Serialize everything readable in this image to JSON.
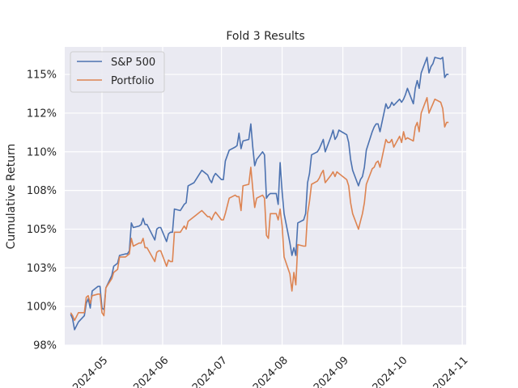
{
  "chart_data": {
    "type": "line",
    "title": "Fold 3 Results",
    "xlabel": "",
    "ylabel": "Cumulative Return",
    "x_ticks": [
      "2024-05",
      "2024-06",
      "2024-07",
      "2024-08",
      "2024-09",
      "2024-10",
      "2024-11"
    ],
    "y_ticks": [
      "98%",
      "100%",
      "103%",
      "105%",
      "108%",
      "110%",
      "112%",
      "115%"
    ],
    "y_tick_values": [
      0.975,
      1.0,
      1.025,
      1.05,
      1.075,
      1.1,
      1.125,
      1.15
    ],
    "ylim": [
      0.975,
      1.1678
    ],
    "xlim": [
      "2024-04-12",
      "2024-11-03"
    ],
    "grid": true,
    "legend_position": "top-left",
    "series": [
      {
        "name": "S&P 500",
        "color": "#4c72b0",
        "points": [
          [
            "2024-04-15",
            0.995
          ],
          [
            "2024-04-16",
            0.992
          ],
          [
            "2024-04-17",
            0.985
          ],
          [
            "2024-04-19",
            0.99
          ],
          [
            "2024-04-22",
            0.994
          ],
          [
            "2024-04-23",
            1.002
          ],
          [
            "2024-04-24",
            1.005
          ],
          [
            "2024-04-25",
            0.999
          ],
          [
            "2024-04-26",
            1.01
          ],
          [
            "2024-04-29",
            1.013
          ],
          [
            "2024-04-30",
            1.013
          ],
          [
            "2024-05-01",
            0.999
          ],
          [
            "2024-05-02",
            0.998
          ],
          [
            "2024-05-03",
            1.012
          ],
          [
            "2024-05-06",
            1.02
          ],
          [
            "2024-05-07",
            1.026
          ],
          [
            "2024-05-08",
            1.027
          ],
          [
            "2024-05-09",
            1.028
          ],
          [
            "2024-05-10",
            1.033
          ],
          [
            "2024-05-13",
            1.034
          ],
          [
            "2024-05-14",
            1.034
          ],
          [
            "2024-05-15",
            1.036
          ],
          [
            "2024-05-16",
            1.054
          ],
          [
            "2024-05-17",
            1.051
          ],
          [
            "2024-05-20",
            1.052
          ],
          [
            "2024-05-21",
            1.053
          ],
          [
            "2024-05-22",
            1.057
          ],
          [
            "2024-05-23",
            1.053
          ],
          [
            "2024-05-24",
            1.053
          ],
          [
            "2024-05-28",
            1.043
          ],
          [
            "2024-05-29",
            1.05
          ],
          [
            "2024-05-30",
            1.051
          ],
          [
            "2024-05-31",
            1.051
          ],
          [
            "2024-06-03",
            1.042
          ],
          [
            "2024-06-04",
            1.047
          ],
          [
            "2024-06-05",
            1.048
          ],
          [
            "2024-06-06",
            1.048
          ],
          [
            "2024-06-07",
            1.063
          ],
          [
            "2024-06-10",
            1.062
          ],
          [
            "2024-06-11",
            1.064
          ],
          [
            "2024-06-12",
            1.066
          ],
          [
            "2024-06-13",
            1.067
          ],
          [
            "2024-06-14",
            1.078
          ],
          [
            "2024-06-17",
            1.08
          ],
          [
            "2024-06-18",
            1.082
          ],
          [
            "2024-06-20",
            1.086
          ],
          [
            "2024-06-21",
            1.088
          ],
          [
            "2024-06-24",
            1.085
          ],
          [
            "2024-06-25",
            1.082
          ],
          [
            "2024-06-26",
            1.08
          ],
          [
            "2024-06-27",
            1.084
          ],
          [
            "2024-06-28",
            1.086
          ],
          [
            "2024-07-01",
            1.082
          ],
          [
            "2024-07-02",
            1.082
          ],
          [
            "2024-07-03",
            1.094
          ],
          [
            "2024-07-05",
            1.101
          ],
          [
            "2024-07-08",
            1.103
          ],
          [
            "2024-07-09",
            1.104
          ],
          [
            "2024-07-10",
            1.112
          ],
          [
            "2024-07-11",
            1.102
          ],
          [
            "2024-07-12",
            1.107
          ],
          [
            "2024-07-15",
            1.108
          ],
          [
            "2024-07-16",
            1.118
          ],
          [
            "2024-07-17",
            1.103
          ],
          [
            "2024-07-18",
            1.091
          ],
          [
            "2024-07-19",
            1.095
          ],
          [
            "2024-07-22",
            1.1
          ],
          [
            "2024-07-23",
            1.098
          ],
          [
            "2024-07-24",
            1.07
          ],
          [
            "2024-07-25",
            1.072
          ],
          [
            "2024-07-26",
            1.073
          ],
          [
            "2024-07-29",
            1.073
          ],
          [
            "2024-07-30",
            1.066
          ],
          [
            "2024-07-31",
            1.093
          ],
          [
            "2024-08-01",
            1.074
          ],
          [
            "2024-08-02",
            1.06
          ],
          [
            "2024-08-05",
            1.041
          ],
          [
            "2024-08-06",
            1.033
          ],
          [
            "2024-08-07",
            1.038
          ],
          [
            "2024-08-08",
            1.033
          ],
          [
            "2024-08-09",
            1.054
          ],
          [
            "2024-08-12",
            1.056
          ],
          [
            "2024-08-13",
            1.06
          ],
          [
            "2024-08-14",
            1.08
          ],
          [
            "2024-08-15",
            1.086
          ],
          [
            "2024-08-16",
            1.098
          ],
          [
            "2024-08-19",
            1.1
          ],
          [
            "2024-08-20",
            1.102
          ],
          [
            "2024-08-21",
            1.105
          ],
          [
            "2024-08-22",
            1.108
          ],
          [
            "2024-08-23",
            1.1
          ],
          [
            "2024-08-26",
            1.11
          ],
          [
            "2024-08-27",
            1.114
          ],
          [
            "2024-08-28",
            1.108
          ],
          [
            "2024-08-29",
            1.11
          ],
          [
            "2024-08-30",
            1.114
          ],
          [
            "2024-09-03",
            1.111
          ],
          [
            "2024-09-04",
            1.106
          ],
          [
            "2024-09-05",
            1.095
          ],
          [
            "2024-09-06",
            1.088
          ],
          [
            "2024-09-09",
            1.078
          ],
          [
            "2024-09-10",
            1.082
          ],
          [
            "2024-09-11",
            1.084
          ],
          [
            "2024-09-12",
            1.09
          ],
          [
            "2024-09-13",
            1.101
          ],
          [
            "2024-09-16",
            1.113
          ],
          [
            "2024-09-17",
            1.116
          ],
          [
            "2024-09-18",
            1.118
          ],
          [
            "2024-09-19",
            1.118
          ],
          [
            "2024-09-20",
            1.113
          ],
          [
            "2024-09-23",
            1.131
          ],
          [
            "2024-09-24",
            1.128
          ],
          [
            "2024-09-25",
            1.129
          ],
          [
            "2024-09-26",
            1.132
          ],
          [
            "2024-09-27",
            1.13
          ],
          [
            "2024-09-30",
            1.134
          ],
          [
            "2024-10-01",
            1.132
          ],
          [
            "2024-10-02",
            1.134
          ],
          [
            "2024-10-03",
            1.137
          ],
          [
            "2024-10-04",
            1.141
          ],
          [
            "2024-10-07",
            1.131
          ],
          [
            "2024-10-08",
            1.141
          ],
          [
            "2024-10-09",
            1.146
          ],
          [
            "2024-10-10",
            1.141
          ],
          [
            "2024-10-11",
            1.151
          ],
          [
            "2024-10-14",
            1.161
          ],
          [
            "2024-10-15",
            1.151
          ],
          [
            "2024-10-16",
            1.155
          ],
          [
            "2024-10-17",
            1.157
          ],
          [
            "2024-10-18",
            1.161
          ],
          [
            "2024-10-21",
            1.16
          ],
          [
            "2024-10-22",
            1.161
          ],
          [
            "2024-10-23",
            1.148
          ],
          [
            "2024-10-24",
            1.15
          ],
          [
            "2024-10-25",
            1.15
          ]
        ]
      },
      {
        "name": "Portfolio",
        "color": "#dd8452",
        "points": [
          [
            "2024-04-15",
            0.996
          ],
          [
            "2024-04-16",
            0.994
          ],
          [
            "2024-04-17",
            0.991
          ],
          [
            "2024-04-19",
            0.996
          ],
          [
            "2024-04-22",
            0.996
          ],
          [
            "2024-04-23",
            1.006
          ],
          [
            "2024-04-24",
            1.007
          ],
          [
            "2024-04-25",
            1.002
          ],
          [
            "2024-04-26",
            1.007
          ],
          [
            "2024-04-29",
            1.008
          ],
          [
            "2024-04-30",
            1.008
          ],
          [
            "2024-05-01",
            0.996
          ],
          [
            "2024-05-02",
            0.994
          ],
          [
            "2024-05-03",
            1.012
          ],
          [
            "2024-05-06",
            1.018
          ],
          [
            "2024-05-07",
            1.022
          ],
          [
            "2024-05-08",
            1.023
          ],
          [
            "2024-05-09",
            1.024
          ],
          [
            "2024-05-10",
            1.032
          ],
          [
            "2024-05-13",
            1.032
          ],
          [
            "2024-05-14",
            1.033
          ],
          [
            "2024-05-15",
            1.034
          ],
          [
            "2024-05-16",
            1.044
          ],
          [
            "2024-05-17",
            1.039
          ],
          [
            "2024-05-20",
            1.041
          ],
          [
            "2024-05-21",
            1.041
          ],
          [
            "2024-05-22",
            1.044
          ],
          [
            "2024-05-23",
            1.038
          ],
          [
            "2024-05-24",
            1.038
          ],
          [
            "2024-05-28",
            1.029
          ],
          [
            "2024-05-29",
            1.035
          ],
          [
            "2024-05-30",
            1.036
          ],
          [
            "2024-05-31",
            1.036
          ],
          [
            "2024-06-03",
            1.026
          ],
          [
            "2024-06-04",
            1.03
          ],
          [
            "2024-06-05",
            1.029
          ],
          [
            "2024-06-06",
            1.029
          ],
          [
            "2024-06-07",
            1.048
          ],
          [
            "2024-06-10",
            1.048
          ],
          [
            "2024-06-11",
            1.05
          ],
          [
            "2024-06-12",
            1.052
          ],
          [
            "2024-06-13",
            1.05
          ],
          [
            "2024-06-14",
            1.055
          ],
          [
            "2024-06-17",
            1.058
          ],
          [
            "2024-06-18",
            1.059
          ],
          [
            "2024-06-20",
            1.061
          ],
          [
            "2024-06-21",
            1.062
          ],
          [
            "2024-06-24",
            1.058
          ],
          [
            "2024-06-25",
            1.058
          ],
          [
            "2024-06-26",
            1.056
          ],
          [
            "2024-06-27",
            1.059
          ],
          [
            "2024-06-28",
            1.061
          ],
          [
            "2024-07-01",
            1.056
          ],
          [
            "2024-07-02",
            1.056
          ],
          [
            "2024-07-03",
            1.06
          ],
          [
            "2024-07-05",
            1.07
          ],
          [
            "2024-07-08",
            1.072
          ],
          [
            "2024-07-09",
            1.071
          ],
          [
            "2024-07-10",
            1.071
          ],
          [
            "2024-07-11",
            1.062
          ],
          [
            "2024-07-12",
            1.078
          ],
          [
            "2024-07-15",
            1.079
          ],
          [
            "2024-07-16",
            1.09
          ],
          [
            "2024-07-17",
            1.076
          ],
          [
            "2024-07-18",
            1.064
          ],
          [
            "2024-07-19",
            1.07
          ],
          [
            "2024-07-22",
            1.072
          ],
          [
            "2024-07-23",
            1.07
          ],
          [
            "2024-07-24",
            1.046
          ],
          [
            "2024-07-25",
            1.044
          ],
          [
            "2024-07-26",
            1.06
          ],
          [
            "2024-07-29",
            1.06
          ],
          [
            "2024-07-30",
            1.056
          ],
          [
            "2024-07-31",
            1.063
          ],
          [
            "2024-08-01",
            1.052
          ],
          [
            "2024-08-02",
            1.032
          ],
          [
            "2024-08-05",
            1.021
          ],
          [
            "2024-08-06",
            1.01
          ],
          [
            "2024-08-07",
            1.022
          ],
          [
            "2024-08-08",
            1.014
          ],
          [
            "2024-08-09",
            1.04
          ],
          [
            "2024-08-12",
            1.039
          ],
          [
            "2024-08-13",
            1.039
          ],
          [
            "2024-08-14",
            1.06
          ],
          [
            "2024-08-15",
            1.068
          ],
          [
            "2024-08-16",
            1.079
          ],
          [
            "2024-08-19",
            1.081
          ],
          [
            "2024-08-20",
            1.083
          ],
          [
            "2024-08-21",
            1.086
          ],
          [
            "2024-08-22",
            1.088
          ],
          [
            "2024-08-23",
            1.08
          ],
          [
            "2024-08-26",
            1.085
          ],
          [
            "2024-08-27",
            1.087
          ],
          [
            "2024-08-28",
            1.084
          ],
          [
            "2024-08-29",
            1.087
          ],
          [
            "2024-08-30",
            1.086
          ],
          [
            "2024-09-03",
            1.082
          ],
          [
            "2024-09-04",
            1.078
          ],
          [
            "2024-09-05",
            1.067
          ],
          [
            "2024-09-06",
            1.06
          ],
          [
            "2024-09-09",
            1.05
          ],
          [
            "2024-09-10",
            1.055
          ],
          [
            "2024-09-11",
            1.06
          ],
          [
            "2024-09-12",
            1.067
          ],
          [
            "2024-09-13",
            1.079
          ],
          [
            "2024-09-16",
            1.089
          ],
          [
            "2024-09-17",
            1.09
          ],
          [
            "2024-09-18",
            1.093
          ],
          [
            "2024-09-19",
            1.094
          ],
          [
            "2024-09-20",
            1.09
          ],
          [
            "2024-09-23",
            1.108
          ],
          [
            "2024-09-24",
            1.106
          ],
          [
            "2024-09-25",
            1.106
          ],
          [
            "2024-09-26",
            1.108
          ],
          [
            "2024-09-27",
            1.103
          ],
          [
            "2024-09-30",
            1.11
          ],
          [
            "2024-10-01",
            1.106
          ],
          [
            "2024-10-02",
            1.113
          ],
          [
            "2024-10-03",
            1.108
          ],
          [
            "2024-10-04",
            1.109
          ],
          [
            "2024-10-07",
            1.107
          ],
          [
            "2024-10-08",
            1.116
          ],
          [
            "2024-10-09",
            1.119
          ],
          [
            "2024-10-10",
            1.113
          ],
          [
            "2024-10-11",
            1.125
          ],
          [
            "2024-10-14",
            1.135
          ],
          [
            "2024-10-15",
            1.125
          ],
          [
            "2024-10-16",
            1.128
          ],
          [
            "2024-10-17",
            1.131
          ],
          [
            "2024-10-18",
            1.134
          ],
          [
            "2024-10-21",
            1.132
          ],
          [
            "2024-10-22",
            1.128
          ],
          [
            "2024-10-23",
            1.116
          ],
          [
            "2024-10-24",
            1.119
          ],
          [
            "2024-10-25",
            1.119
          ]
        ]
      }
    ]
  }
}
